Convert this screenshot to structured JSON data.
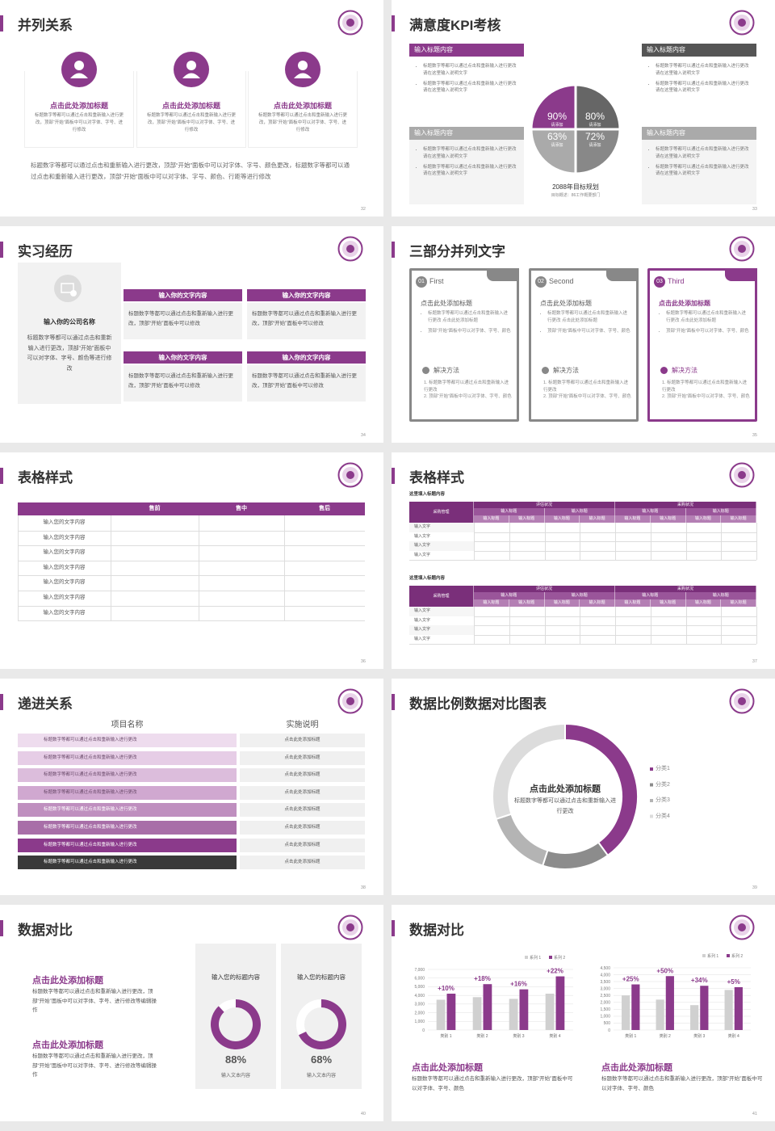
{
  "slides": [
    {
      "title": "并列关系",
      "page": 32,
      "items": [
        {
          "heading": "点击此处添加标题",
          "text": "标题数字等都可以通过点击和重新输入进行更改，顶部“开始”面板中可以对字体、字号、进行修改"
        },
        {
          "heading": "点击此处添加标题",
          "text": "标题数字等都可以通过点击和重新输入进行更改，顶部“开始”面板中可以对字体、字号、进行修改"
        },
        {
          "heading": "点击此处添加标题",
          "text": "标题数字等都可以通过点击和重新输入进行更改，顶部“开始”面板中可以对字体、字号、进行修改"
        }
      ],
      "body": "标题数字等都可以通过点击和重新输入进行更改，顶部“开始”面板中可以对字体、字号、颜色更改，标题数字等都可以通过点击和重新输入进行更改，顶部“开始”面板中可以对字体、字号、颜色、行距等进行修改"
    },
    {
      "title": "满意度KPI考核",
      "page": 33,
      "boxes": [
        {
          "heading": "输入标题内容",
          "bullets": [
            "标题数字等都可以通过点击和重新输入进行更改 请在这里输入说明文字",
            "标题数字等都可以通过点击和重新输入进行更改 请在这里输入说明文字"
          ]
        },
        {
          "heading": "输入标题内容",
          "bullets": [
            "标题数字等都可以通过点击和重新输入进行更改 请在这里输入说明文字",
            "标题数字等都可以通过点击和重新输入进行更改 请在这里输入说明文字"
          ]
        },
        {
          "heading": "输入标题内容",
          "bullets": [
            "标题数字等都可以通过点击和重新输入进行更改 请在这里输入说明文字",
            "标题数字等都可以通过点击和重新输入进行更改 请在这里输入说明文字"
          ]
        },
        {
          "heading": "输入标题内容",
          "bullets": [
            "标题数字等都可以通过点击和重新输入进行更改 请在这里输入说明文字",
            "标题数字等都可以通过点击和重新输入进行更改 请在这里输入说明文字"
          ]
        }
      ],
      "kpis": [
        {
          "value": "90%",
          "label": "请添加"
        },
        {
          "value": "80%",
          "label": "请添加"
        },
        {
          "value": "63%",
          "label": "请添加"
        },
        {
          "value": "72%",
          "label": "请添加"
        }
      ],
      "goal": "2088年目标规划",
      "goal_note": "目标概述：86工作概要部门"
    },
    {
      "title": "实习经历",
      "page": 34,
      "company": "输入你的公司名称",
      "company_text": "标题数字等都可以通过点击和重新输入进行更改，顶部“开始”面板中可以对字体、字号、颜色等进行修改",
      "cards": [
        {
          "heading": "输入你的文字内容",
          "text": "标题数字等都可以通过点击和重新输入进行更改，顶部“开始”面板中可以修改"
        },
        {
          "heading": "输入你的文字内容",
          "text": "标题数字等都可以通过点击和重新输入进行更改，顶部“开始”面板中可以修改"
        },
        {
          "heading": "输入你的文字内容",
          "text": "标题数字等都可以通过点击和重新输入进行更改，顶部“开始”面板中可以修改"
        },
        {
          "heading": "输入你的文字内容",
          "text": "标题数字等都可以通过点击和重新输入进行更改，顶部“开始”面板中可以修改"
        }
      ]
    },
    {
      "title": "三部分并列文字",
      "page": 35,
      "cards": [
        {
          "number": "01",
          "name": "First",
          "heading": "点击此处添加标题",
          "bullets": [
            "标题数字等都可以通过点击和重新输入进行更改 点击此处添加标题",
            "顶部“开始”面板中可以对字体、字号、颜色"
          ],
          "method_title": "解决方法",
          "steps": [
            "1. 标题数字等都可以通过点击和重新输入进行更改",
            "2. 顶部“开始”面板中可以对字体、字号、颜色"
          ]
        },
        {
          "number": "02",
          "name": "Second",
          "heading": "点击此处添加标题",
          "bullets": [
            "标题数字等都可以通过点击和重新输入进行更改 点击此处添加标题",
            "顶部“开始”面板中可以对字体、字号、颜色"
          ],
          "method_title": "解决方法",
          "steps": [
            "1. 标题数字等都可以通过点击和重新输入进行更改",
            "2. 顶部“开始”面板中可以对字体、字号、颜色"
          ]
        },
        {
          "number": "03",
          "name": "Third",
          "heading": "点击此处添加标题",
          "bullets": [
            "标题数字等都可以通过点击和重新输入进行更改 点击此处添加标题",
            "顶部“开始”面板中可以对字体、字号、颜色"
          ],
          "method_title": "解决方法",
          "steps": [
            "1. 标题数字等都可以通过点击和重新输入进行更改",
            "2. 顶部“开始”面板中可以对字体、字号、颜色"
          ]
        }
      ]
    },
    {
      "title": "表格样式",
      "page": 36,
      "table": {
        "headers": [
          "售前",
          "售中",
          "售后"
        ],
        "rows": [
          "输入您的文字内容",
          "输入您的文字内容",
          "输入您的文字内容",
          "输入您的文字内容",
          "输入您的文字内容",
          "输入您的文字内容",
          "输入您的文字内容"
        ]
      }
    },
    {
      "title": "表格样式",
      "page": 37,
      "tables": [
        {
          "label": "这里填入标题内容",
          "corner": "采购管理",
          "groups": [
            "评估状况",
            "采购状况"
          ],
          "subgroups": [
            "输入标题",
            "输入标题",
            "输入标题",
            "输入标题"
          ],
          "columns": [
            "输入标题",
            "输入标题",
            "输入标题",
            "输入标题",
            "输入标题",
            "输入标题",
            "输入标题",
            "输入标题"
          ],
          "rows": [
            "输入文字",
            "输入文字",
            "输入文字",
            "输入文字"
          ]
        },
        {
          "label": "这里填入标题内容",
          "corner": "采购管理",
          "groups": [
            "评估状况",
            "采购状况"
          ],
          "subgroups": [
            "输入标题",
            "输入标题",
            "输入标题",
            "输入标题"
          ],
          "columns": [
            "输入标题",
            "输入标题",
            "输入标题",
            "输入标题",
            "输入标题",
            "输入标题",
            "输入标题",
            "输入标题"
          ],
          "rows": [
            "输入文字",
            "输入文字",
            "输入文字",
            "输入文字"
          ]
        }
      ]
    },
    {
      "title": "递进关系",
      "page": 38,
      "headers": [
        "项目名称",
        "实施说明"
      ],
      "rows": [
        {
          "item": "标题数字等都可以通过点击和重新输入进行更改",
          "note": "点击此处添加标题"
        },
        {
          "item": "标题数字等都可以通过点击和重新输入进行更改",
          "note": "点击此处添加标题"
        },
        {
          "item": "标题数字等都可以通过点击和重新输入进行更改",
          "note": "点击此处添加标题"
        },
        {
          "item": "标题数字等都可以通过点击和重新输入进行更改",
          "note": "点击此处添加标题"
        },
        {
          "item": "标题数字等都可以通过点击和重新输入进行更改",
          "note": "点击此处添加标题"
        },
        {
          "item": "标题数字等都可以通过点击和重新输入进行更改",
          "note": "点击此处添加标题"
        },
        {
          "item": "标题数字等都可以通过点击和重新输入进行更改",
          "note": "点击此处添加标题"
        },
        {
          "item": "标题数字等都可以通过点击和重新输入进行更改",
          "note": "点击此处添加标题"
        }
      ]
    },
    {
      "title": "数据比例数据对比图表",
      "page": 39,
      "chart": {
        "type": "pie",
        "title": "点击此处添加标题",
        "subtitle": "标题数字等都可以通过点击和重新输入进行更改",
        "categories": [
          "分类1",
          "分类2",
          "分类3",
          "分类4"
        ],
        "values": [
          40,
          15,
          15,
          30
        ],
        "colors": [
          "#8b3a8b",
          "#8c8c8c",
          "#b4b4b4",
          "#dcdcdc"
        ]
      }
    },
    {
      "title": "数据对比",
      "page": 40,
      "blocks": [
        {
          "heading": "点击此处添加标题",
          "text": "标题数字等都可以通过点击和重新输入进行更改，顶部“开始”面板中可以对字体、字号、进行修改等编辑操作"
        },
        {
          "heading": "点击此处添加标题",
          "text": "标题数字等都可以通过点击和重新输入进行更改，顶部“开始”面板中可以对字体、字号、进行修改等编辑操作"
        }
      ],
      "cards": [
        {
          "heading": "输入您的标题内容",
          "value": 88,
          "value_label": "88%",
          "label": "输入文本内容",
          "color": "#8b3a8b"
        },
        {
          "heading": "输入您的标题内容",
          "value": 68,
          "value_label": "68%",
          "label": "输入文本内容",
          "color": "#8b3a8b"
        }
      ]
    },
    {
      "title": "数据对比",
      "page": 41,
      "charts": [
        {
          "type": "bar",
          "categories": [
            "类别 1",
            "类别 2",
            "类别 3",
            "类别 4"
          ],
          "series": [
            {
              "name": "系列 1",
              "color": "#d0d0d0",
              "values": [
                3500,
                3800,
                3600,
                4200
              ]
            },
            {
              "name": "系列 2",
              "color": "#8b3a8b",
              "values": [
                4200,
                5300,
                4700,
                6200
              ]
            }
          ],
          "ylim": [
            0,
            7000
          ],
          "yticks": [
            0,
            {
              "value": 1000,
              "label": "1,000"
            },
            {
              "value": 2000,
              "label": "2,000"
            },
            {
              "value": 3000,
              "label": "3,000"
            },
            {
              "value": 4000,
              "label": "4,000"
            },
            {
              "value": 5000,
              "label": "5,000"
            },
            {
              "value": 6000,
              "label": "6,000"
            },
            {
              "value": 7000,
              "label": "7,000"
            }
          ],
          "annotations": [
            "+10%",
            "+18%",
            "+16%",
            "+22%"
          ]
        },
        {
          "type": "bar",
          "categories": [
            "类别 1",
            "类别 2",
            "类别 3",
            "类别 4"
          ],
          "series": [
            {
              "name": "系列 1",
              "color": "#d0d0d0",
              "values": [
                2500,
                2200,
                1800,
                2900
              ]
            },
            {
              "name": "系列 2",
              "color": "#8b3a8b",
              "values": [
                3300,
                3900,
                3200,
                3100
              ]
            }
          ],
          "ylim": [
            0,
            4500
          ],
          "yticks": [
            0,
            500,
            {
              "value": 1000,
              "label": "1,000"
            },
            {
              "value": 1500,
              "label": "1,500"
            },
            {
              "value": 2000,
              "label": "2,000"
            },
            {
              "value": 2500,
              "label": "2,500"
            },
            {
              "value": 3000,
              "label": "3,000"
            },
            {
              "value": 3500,
              "label": "3,500"
            },
            {
              "value": 4000,
              "label": "4,000"
            },
            {
              "value": 4500,
              "label": "4,500"
            }
          ],
          "annotations": [
            "+25%",
            "+50%",
            "+34%",
            "+5%"
          ]
        }
      ],
      "blocks": [
        {
          "heading": "点击此处添加标题",
          "text": "标题数字等都可以通过点击和重新输入进行更改，顶部“开始”面板中可以对字体、字号、颜色"
        },
        {
          "heading": "点击此处添加标题",
          "text": "标题数字等都可以通过点击和重新输入进行更改，顶部“开始”面板中可以对字体、字号、颜色"
        }
      ]
    }
  ]
}
